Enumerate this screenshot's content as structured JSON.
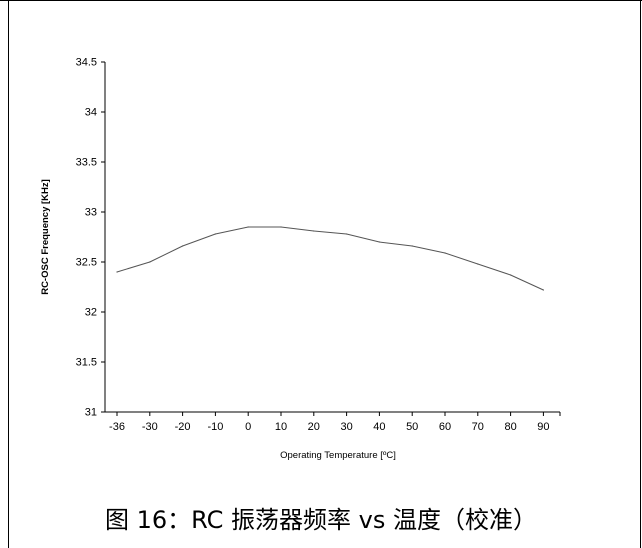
{
  "chart_data": {
    "type": "line",
    "title": "",
    "xlabel": "Operating Temperature [ºC]",
    "ylabel": "RC-OSC Frequency [KHz]",
    "ylim": [
      31,
      34.5
    ],
    "y_ticks": [
      "31",
      "31.5",
      "32",
      "32.5",
      "33",
      "33.5",
      "34",
      "34.5"
    ],
    "y_tick_values": [
      31,
      31.5,
      32,
      32.5,
      33,
      33.5,
      34,
      34.5
    ],
    "categories": [
      "-36",
      "-30",
      "-20",
      "-10",
      "0",
      "10",
      "20",
      "30",
      "40",
      "50",
      "60",
      "70",
      "80",
      "90"
    ],
    "series": [
      {
        "values": [
          32.4,
          32.5,
          32.66,
          32.78,
          32.85,
          32.85,
          32.81,
          32.78,
          32.7,
          32.66,
          32.59,
          32.48,
          32.37,
          32.22
        ],
        "color": "#555555"
      }
    ],
    "grid": false,
    "legend": "none"
  },
  "caption": "图 16：RC 振荡器频率 vs 温度（校准）"
}
